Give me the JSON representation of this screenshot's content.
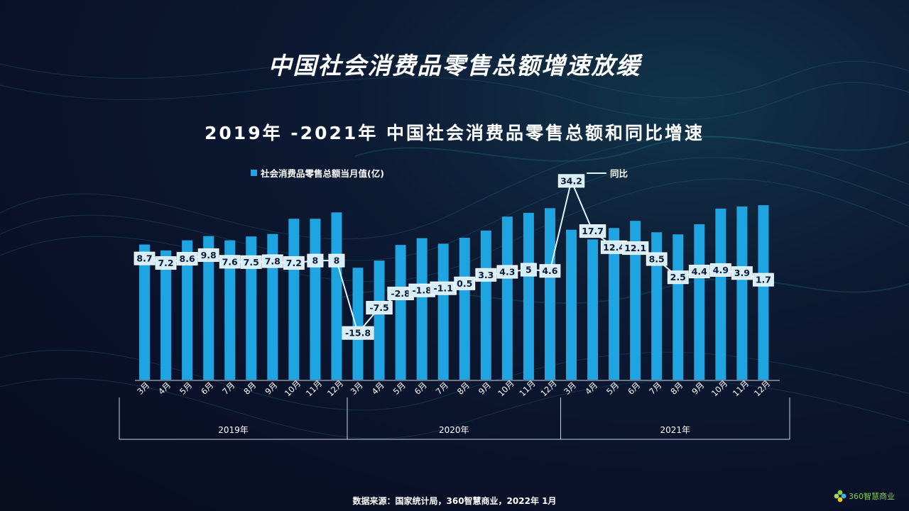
{
  "page": {
    "main_title": "中国社会消费品零售总额增速放缓",
    "source": "数据来源：国家统计局，360智慧商业，2022年 1月",
    "logo_text": "360智慧商业"
  },
  "colors": {
    "bar": "#1ea4e0",
    "line": "#dff3fb",
    "label_bg": "#d5eef9",
    "label_text": "#0d1a30"
  },
  "chart_data": {
    "type": "bar",
    "title": "2019年 -2021年 中国社会消费品零售总额和同比增速",
    "legend": {
      "bar": "社会消费品零售总额当月值(亿)",
      "line": "同比",
      "position": "top"
    },
    "categories": [
      "3月",
      "4月",
      "5月",
      "6月",
      "7月",
      "8月",
      "9月",
      "10月",
      "11月",
      "12月",
      "3月",
      "4月",
      "5月",
      "6月",
      "7月",
      "8月",
      "9月",
      "10月",
      "11月",
      "12月",
      "3月",
      "4月",
      "5月",
      "6月",
      "7月",
      "8月",
      "9月",
      "10月",
      "11月",
      "12月"
    ],
    "groups": [
      {
        "label": "2019年",
        "start": 0,
        "end": 9
      },
      {
        "label": "2020年",
        "start": 10,
        "end": 19
      },
      {
        "label": "2021年",
        "start": 20,
        "end": 29
      }
    ],
    "series": [
      {
        "name": "社会消费品零售总额当月值(亿)",
        "type": "bar",
        "values": [
          32000,
          30600,
          33000,
          34000,
          33000,
          33900,
          34500,
          38100,
          38100,
          39600,
          26500,
          28200,
          31900,
          33500,
          32200,
          33600,
          35300,
          38600,
          39500,
          40600,
          35500,
          33200,
          35900,
          37600,
          34900,
          34400,
          36800,
          40500,
          41000,
          41300
        ]
      },
      {
        "name": "同比",
        "type": "line",
        "values": [
          8.7,
          7.2,
          8.6,
          9.8,
          7.6,
          7.5,
          7.8,
          7.2,
          8,
          8,
          -15.8,
          -7.5,
          -2.8,
          -1.8,
          -1.1,
          0.5,
          3.3,
          4.3,
          5,
          4.6,
          34.2,
          17.7,
          12.4,
          12.1,
          8.5,
          2.5,
          4.4,
          4.9,
          3.9,
          1.7
        ],
        "labels": [
          "8.7",
          "7.2",
          "8.6",
          "9.8",
          "7.6",
          "7.5",
          "7.8",
          "7.2",
          "8",
          "8",
          "-15.8",
          "-7.5",
          "-2.8",
          "-1.8",
          "-1.1",
          "0.5",
          "3.3",
          "4.3",
          "5",
          "4.6",
          "34.2",
          "17.7",
          "12.4",
          "12.1",
          "8.5",
          "2.5",
          "4.4",
          "4.9",
          "3.9",
          "1.7"
        ]
      }
    ],
    "ylim_bar": [
      0,
      42000
    ],
    "ylim_line": [
      -30,
      40
    ],
    "grid": false
  }
}
